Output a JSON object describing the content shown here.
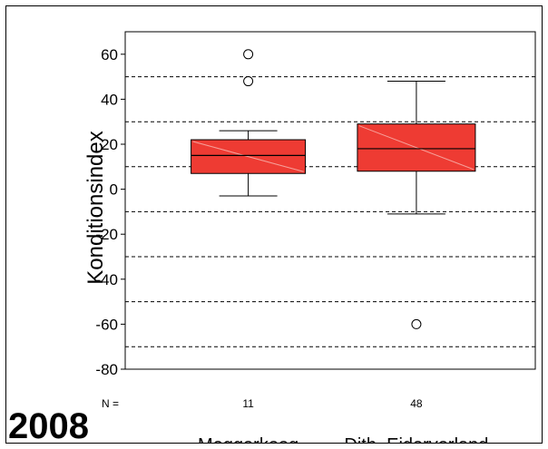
{
  "chart_data": {
    "type": "boxplot",
    "ylabel": "Konditionsindex",
    "ylim": [
      -80,
      70
    ],
    "yticks": [
      60,
      40,
      20,
      0,
      -20,
      -40,
      -60,
      -80
    ],
    "grid": "horizontal dashed",
    "categories": [
      "Meggerkoog",
      "Dith. Eidervorland"
    ],
    "n_label": "N =",
    "n": [
      "11",
      "48"
    ],
    "boxes": [
      {
        "category": "Meggerkoog",
        "whisker_low": -3,
        "q1": 7,
        "median": 15,
        "q3": 22,
        "whisker_high": 26,
        "outliers": [
          60,
          48
        ]
      },
      {
        "category": "Dith. Eidervorland",
        "whisker_low": -11,
        "q1": 8,
        "median": 18,
        "q3": 29,
        "whisker_high": 48,
        "outliers": [
          -60
        ]
      }
    ],
    "box_color": "#ee3b33",
    "year": "2008"
  }
}
